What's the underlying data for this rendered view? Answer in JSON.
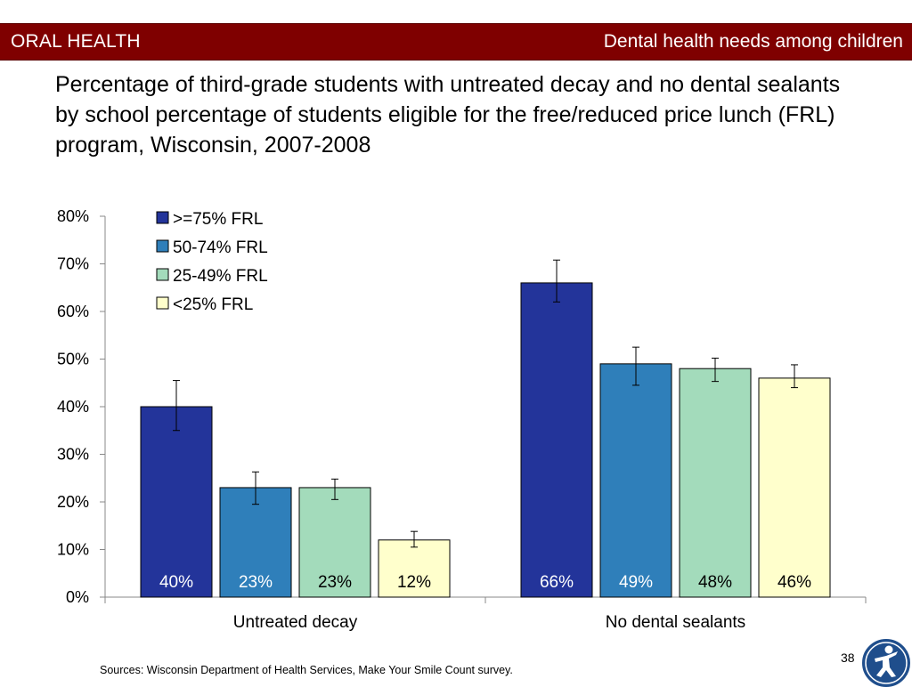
{
  "header": {
    "section": "ORAL HEALTH",
    "topic": "Dental health needs among children"
  },
  "chart_data": {
    "type": "bar",
    "title": "Percentage of third-grade students with untreated decay and no dental sealants by school percentage of students eligible for the free/reduced price lunch (FRL) program, Wisconsin, 2007-2008",
    "categories": [
      "Untreated decay",
      "No dental sealants"
    ],
    "series": [
      {
        "name": ">=75% FRL",
        "color": "#23349a",
        "values": [
          40,
          66
        ],
        "labels": [
          "40%",
          "66%"
        ],
        "err_low": [
          35,
          62
        ],
        "err_high": [
          45.5,
          70.8
        ]
      },
      {
        "name": "50-74% FRL",
        "color": "#2f7fba",
        "values": [
          23,
          49
        ],
        "labels": [
          "23%",
          "49%"
        ],
        "err_low": [
          19.5,
          44.5
        ],
        "err_high": [
          26.3,
          52.5
        ]
      },
      {
        "name": "25-49% FRL",
        "color": "#a3dbbb",
        "values": [
          23,
          48
        ],
        "labels": [
          "23%",
          "48%"
        ],
        "err_low": [
          20.5,
          45.3
        ],
        "err_high": [
          24.8,
          50.2
        ]
      },
      {
        "name": "<25% FRL",
        "color": "#ffffcc",
        "values": [
          12,
          46
        ],
        "labels": [
          "12%",
          "46%"
        ],
        "err_low": [
          10.5,
          44
        ],
        "err_high": [
          13.8,
          48.8
        ]
      }
    ],
    "yticks": [
      "0%",
      "10%",
      "20%",
      "30%",
      "40%",
      "50%",
      "60%",
      "70%",
      "80%"
    ],
    "ylim": [
      0,
      80
    ],
    "xlabel": "",
    "ylabel": "",
    "legend": "top-left",
    "grid": false
  },
  "footer": {
    "sources": "Sources: Wisconsin Department of Health Services, Make Your Smile Count survey.",
    "page": "38"
  }
}
